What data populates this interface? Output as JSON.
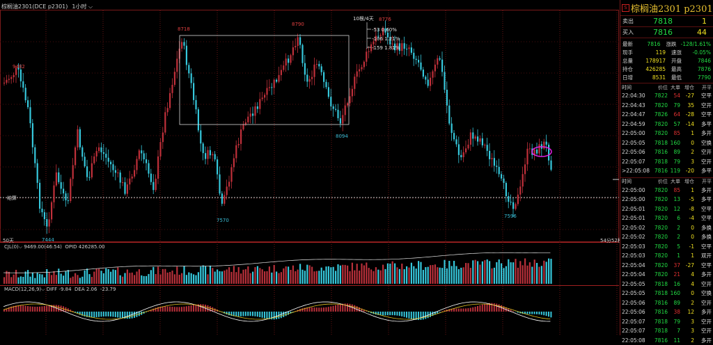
{
  "header": {
    "instrument_label": "棕榈油2301(DCE p2301)",
    "period_label": "1小时",
    "indicator_50": "50天"
  },
  "main_chart": {
    "peaks": [
      {
        "label": "9482"
      },
      {
        "label": "8718"
      },
      {
        "label": "8790"
      },
      {
        "label": "8776"
      }
    ],
    "troughs": [
      {
        "label": "7444"
      },
      {
        "label": "7570"
      },
      {
        "label": "8094"
      },
      {
        "label": "7596"
      }
    ],
    "fib_box_title": "10根/4天",
    "fib_levels": [
      "-53  0.60%",
      "-106  1.21%",
      "-159  1.81%"
    ],
    "price_line_label": "结算",
    "time_left_label": "54分52秒",
    "colors": {
      "up": "#c0303a",
      "down": "#36c8dc",
      "marker": "#e020e0"
    }
  },
  "volume_pane": {
    "label": "CJL(0)",
    "value_label": "9469.00(46:54)",
    "opid_label": "OPID 426285.00"
  },
  "macd_pane": {
    "label": "MACD(12,26,9)",
    "diff_label": "DIFF -9.84",
    "dea_label": "DEA 2.06",
    "macd_value": "-23.79"
  },
  "panel": {
    "title_icon": "S",
    "title": "棕榈油2301 p2301",
    "sell": {
      "label": "卖出",
      "price": "7818",
      "qty": "1"
    },
    "buy": {
      "label": "买入",
      "price": "7816",
      "qty": "44"
    },
    "stats": [
      {
        "k": "最新",
        "v": "7816",
        "vcolor": "#22dd44",
        "k2": "涨跌",
        "v2": "-128/1.61%",
        "v2color": "#22dd44"
      },
      {
        "k": "现手",
        "v": "119",
        "vcolor": "#f0e020",
        "k2": "速涨",
        "v2": "-0.05%",
        "v2color": "#22dd44"
      },
      {
        "k": "总量",
        "v": "178917",
        "vcolor": "#f0e020",
        "k2": "开盘",
        "v2": "7846",
        "v2color": "#22dd44"
      },
      {
        "k": "持仓",
        "v": "426285",
        "vcolor": "#f0e020",
        "k2": "最高",
        "v2": "7876",
        "v2color": "#22dd44"
      },
      {
        "k": "日增",
        "v": "8531",
        "vcolor": "#f0e020",
        "k2": "最低",
        "v2": "7790",
        "v2color": "#22dd44"
      }
    ],
    "tick_header": {
      "time": "时间",
      "price": "价位",
      "vol": "大单",
      "oi": "增仓",
      "type": "开平"
    },
    "ticks_top": [
      {
        "time": "22:04:30",
        "price": "7822",
        "vol": "54",
        "volc": "#e03030",
        "oi": "-27",
        "type": "空平"
      },
      {
        "time": "22:04:43",
        "price": "7820",
        "vol": "79",
        "volc": "#22dd44",
        "oi": "35",
        "type": "空开"
      },
      {
        "time": "22:04:47",
        "price": "7826",
        "vol": "64",
        "volc": "#e03030",
        "oi": "-28",
        "type": "空平"
      },
      {
        "time": "22:04:59",
        "price": "7820",
        "vol": "57",
        "volc": "#22dd44",
        "oi": "-14",
        "type": "多平"
      },
      {
        "time": "22:05:00",
        "price": "7820",
        "vol": "85",
        "volc": "#e03030",
        "oi": "1",
        "type": "多开"
      },
      {
        "time": "22:05:05",
        "price": "7818",
        "vol": "160",
        "volc": "#22dd44",
        "oi": "0",
        "type": "空换"
      },
      {
        "time": "22:05:06",
        "price": "7816",
        "vol": "89",
        "volc": "#22dd44",
        "oi": "2",
        "type": "空开"
      },
      {
        "time": "22:05:07",
        "price": "7818",
        "vol": "79",
        "volc": "#22dd44",
        "oi": "3",
        "type": "空开"
      },
      {
        "time": ">22:05:08",
        "price": "7816",
        "vol": "119",
        "volc": "#22dd44",
        "oi": "-20",
        "type": "多平"
      }
    ],
    "ticks_bottom": [
      {
        "time": "22:05:00",
        "price": "7820",
        "vol": "85",
        "volc": "#e03030",
        "oi": "1",
        "type": "多开"
      },
      {
        "time": "22:05:00",
        "price": "7820",
        "vol": "13",
        "volc": "#22dd44",
        "oi": "-5",
        "type": "多平"
      },
      {
        "time": "22:05:01",
        "price": "7820",
        "vol": "12",
        "volc": "#22dd44",
        "oi": "-8",
        "type": "空平"
      },
      {
        "time": "22:05:01",
        "price": "7820",
        "vol": "6",
        "volc": "#22dd44",
        "oi": "-4",
        "type": "空平"
      },
      {
        "time": "22:05:02",
        "price": "7820",
        "vol": "2",
        "volc": "#22dd44",
        "oi": "0",
        "type": "多换"
      },
      {
        "time": "22:05:02",
        "price": "7820",
        "vol": "2",
        "volc": "#22dd44",
        "oi": "0",
        "type": "多换"
      },
      {
        "time": "22:05:03",
        "price": "7820",
        "vol": "5",
        "volc": "#22dd44",
        "oi": "-1",
        "type": "空平"
      },
      {
        "time": "22:05:03",
        "price": "7820",
        "vol": "1",
        "volc": "#22dd44",
        "oi": "1",
        "type": "双开"
      },
      {
        "time": "22:05:04",
        "price": "7820",
        "vol": "37",
        "volc": "#e03030",
        "oi": "-27",
        "type": "空平"
      },
      {
        "time": "22:05:04",
        "price": "7820",
        "vol": "21",
        "volc": "#e03030",
        "oi": "4",
        "type": "多开"
      },
      {
        "time": "22:05:05",
        "price": "7818",
        "vol": "16",
        "volc": "#22dd44",
        "oi": "4",
        "type": "空开"
      },
      {
        "time": "22:05:05",
        "price": "7818",
        "vol": "160",
        "volc": "#22dd44",
        "oi": "0",
        "type": "空换"
      },
      {
        "time": "22:05:06",
        "price": "7816",
        "vol": "89",
        "volc": "#22dd44",
        "oi": "2",
        "type": "空开"
      },
      {
        "time": "22:05:06",
        "price": "7816",
        "vol": "38",
        "volc": "#e03030",
        "oi": "12",
        "type": "多开"
      },
      {
        "time": "22:05:07",
        "price": "7818",
        "vol": "79",
        "volc": "#22dd44",
        "oi": "3",
        "type": "空开"
      },
      {
        "time": "22:05:07",
        "price": "7818",
        "vol": "7",
        "volc": "#22dd44",
        "oi": "3",
        "type": "空开"
      },
      {
        "time": "22:05:08",
        "price": "7816",
        "vol": "11",
        "volc": "#22dd44",
        "oi": "2",
        "type": "多开"
      }
    ]
  }
}
